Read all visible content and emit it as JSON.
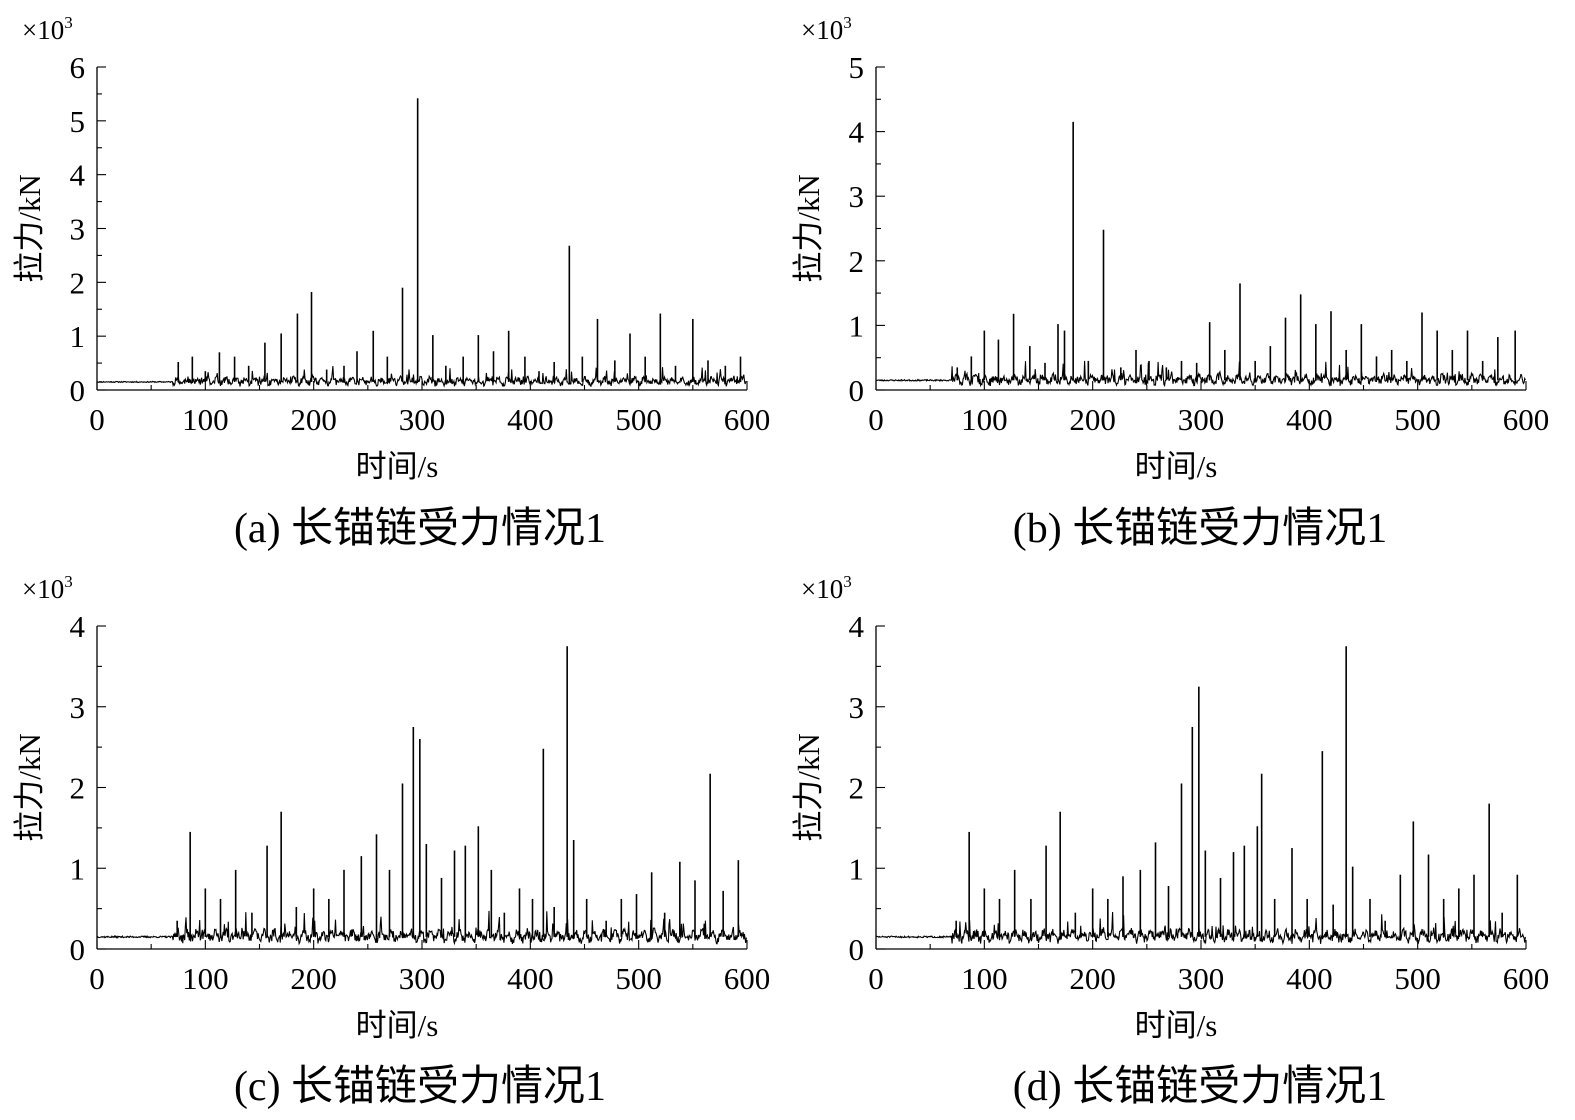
{
  "chart_data": [
    {
      "type": "line",
      "caption": "(a) 长锚链受力情况1",
      "xlabel": "时间/s",
      "ylabel": "拉力/kN",
      "multiplier_base": "×10",
      "multiplier_exp": "3",
      "xlim": [
        0,
        600
      ],
      "ylim": [
        0,
        6
      ],
      "xticks": [
        0,
        100,
        200,
        300,
        400,
        500,
        600
      ],
      "yticks": [
        0,
        1,
        2,
        3,
        4,
        5,
        6
      ],
      "baseline": 0.15,
      "quiet_until": 70,
      "seed": 11,
      "spikes": [
        [
          75,
          0.52
        ],
        [
          88,
          0.62
        ],
        [
          100,
          0.35
        ],
        [
          113,
          0.7
        ],
        [
          127,
          0.62
        ],
        [
          140,
          0.45
        ],
        [
          155,
          0.88
        ],
        [
          170,
          1.05
        ],
        [
          185,
          1.42
        ],
        [
          198,
          1.82
        ],
        [
          212,
          0.38
        ],
        [
          228,
          0.45
        ],
        [
          240,
          0.72
        ],
        [
          255,
          1.1
        ],
        [
          268,
          0.62
        ],
        [
          282,
          1.9
        ],
        [
          296,
          5.42
        ],
        [
          310,
          1.02
        ],
        [
          322,
          0.45
        ],
        [
          338,
          0.62
        ],
        [
          352,
          1.02
        ],
        [
          366,
          0.72
        ],
        [
          380,
          1.1
        ],
        [
          395,
          0.62
        ],
        [
          408,
          0.35
        ],
        [
          422,
          0.52
        ],
        [
          436,
          2.68
        ],
        [
          448,
          0.62
        ],
        [
          462,
          1.32
        ],
        [
          478,
          0.55
        ],
        [
          492,
          1.05
        ],
        [
          506,
          0.62
        ],
        [
          520,
          1.42
        ],
        [
          534,
          0.45
        ],
        [
          550,
          1.32
        ],
        [
          564,
          0.55
        ],
        [
          580,
          0.45
        ],
        [
          594,
          0.62
        ]
      ]
    },
    {
      "type": "line",
      "caption": "(b) 长锚链受力情况1",
      "xlabel": "时间/s",
      "ylabel": "拉力/kN",
      "multiplier_base": "×10",
      "multiplier_exp": "3",
      "xlim": [
        0,
        600
      ],
      "ylim": [
        0,
        5
      ],
      "xticks": [
        0,
        100,
        200,
        300,
        400,
        500,
        600
      ],
      "yticks": [
        0,
        1,
        2,
        3,
        4,
        5
      ],
      "baseline": 0.15,
      "quiet_until": 70,
      "seed": 23,
      "spikes": [
        [
          75,
          0.35
        ],
        [
          88,
          0.52
        ],
        [
          100,
          0.92
        ],
        [
          113,
          0.78
        ],
        [
          127,
          1.18
        ],
        [
          142,
          0.68
        ],
        [
          156,
          0.42
        ],
        [
          168,
          1.02
        ],
        [
          174,
          0.92
        ],
        [
          182,
          4.15
        ],
        [
          196,
          0.45
        ],
        [
          210,
          2.48
        ],
        [
          226,
          0.35
        ],
        [
          240,
          0.62
        ],
        [
          252,
          0.45
        ],
        [
          268,
          0.35
        ],
        [
          282,
          0.45
        ],
        [
          296,
          0.42
        ],
        [
          308,
          1.05
        ],
        [
          322,
          0.62
        ],
        [
          336,
          1.65
        ],
        [
          350,
          0.45
        ],
        [
          364,
          0.68
        ],
        [
          378,
          1.12
        ],
        [
          392,
          1.48
        ],
        [
          406,
          1.02
        ],
        [
          420,
          1.22
        ],
        [
          434,
          0.62
        ],
        [
          448,
          1.02
        ],
        [
          462,
          0.52
        ],
        [
          476,
          0.62
        ],
        [
          490,
          0.45
        ],
        [
          504,
          1.2
        ],
        [
          518,
          0.92
        ],
        [
          532,
          0.62
        ],
        [
          546,
          0.92
        ],
        [
          560,
          0.45
        ],
        [
          574,
          0.82
        ],
        [
          590,
          0.92
        ]
      ]
    },
    {
      "type": "line",
      "caption": "(c) 长锚链受力情况1",
      "xlabel": "时间/s",
      "ylabel": "拉力/kN",
      "multiplier_base": "×10",
      "multiplier_exp": "3",
      "xlim": [
        0,
        600
      ],
      "ylim": [
        0,
        4
      ],
      "xticks": [
        0,
        100,
        200,
        300,
        400,
        500,
        600
      ],
      "yticks": [
        0,
        1,
        2,
        3,
        4
      ],
      "baseline": 0.15,
      "quiet_until": 70,
      "seed": 37,
      "spikes": [
        [
          74,
          0.35
        ],
        [
          86,
          1.45
        ],
        [
          100,
          0.75
        ],
        [
          114,
          0.62
        ],
        [
          128,
          0.98
        ],
        [
          143,
          0.45
        ],
        [
          157,
          1.28
        ],
        [
          170,
          1.7
        ],
        [
          184,
          0.52
        ],
        [
          200,
          0.75
        ],
        [
          214,
          0.62
        ],
        [
          228,
          0.98
        ],
        [
          244,
          1.15
        ],
        [
          258,
          1.42
        ],
        [
          270,
          0.98
        ],
        [
          282,
          2.05
        ],
        [
          292,
          2.75
        ],
        [
          298,
          2.6
        ],
        [
          304,
          1.3
        ],
        [
          318,
          0.88
        ],
        [
          330,
          1.22
        ],
        [
          340,
          1.28
        ],
        [
          352,
          1.52
        ],
        [
          364,
          0.98
        ],
        [
          376,
          0.45
        ],
        [
          390,
          0.75
        ],
        [
          402,
          0.62
        ],
        [
          412,
          2.48
        ],
        [
          422,
          0.52
        ],
        [
          434,
          3.75
        ],
        [
          440,
          1.35
        ],
        [
          452,
          0.62
        ],
        [
          470,
          0.35
        ],
        [
          484,
          0.62
        ],
        [
          498,
          0.68
        ],
        [
          512,
          0.95
        ],
        [
          524,
          0.45
        ],
        [
          538,
          1.08
        ],
        [
          552,
          0.85
        ],
        [
          566,
          2.17
        ],
        [
          578,
          0.72
        ],
        [
          592,
          1.1
        ]
      ]
    },
    {
      "type": "line",
      "caption": "(d) 长锚链受力情况1",
      "xlabel": "时间/s",
      "ylabel": "拉力/kN",
      "multiplier_base": "×10",
      "multiplier_exp": "3",
      "xlim": [
        0,
        600
      ],
      "ylim": [
        0,
        4
      ],
      "xticks": [
        0,
        100,
        200,
        300,
        400,
        500,
        600
      ],
      "yticks": [
        0,
        1,
        2,
        3,
        4
      ],
      "baseline": 0.15,
      "quiet_until": 70,
      "seed": 51,
      "spikes": [
        [
          74,
          0.35
        ],
        [
          86,
          1.45
        ],
        [
          100,
          0.75
        ],
        [
          114,
          0.62
        ],
        [
          128,
          0.98
        ],
        [
          143,
          0.62
        ],
        [
          157,
          1.28
        ],
        [
          170,
          1.7
        ],
        [
          184,
          0.45
        ],
        [
          200,
          0.75
        ],
        [
          214,
          0.62
        ],
        [
          228,
          0.9
        ],
        [
          244,
          0.98
        ],
        [
          258,
          1.32
        ],
        [
          270,
          0.78
        ],
        [
          282,
          2.05
        ],
        [
          292,
          2.75
        ],
        [
          298,
          3.25
        ],
        [
          304,
          1.22
        ],
        [
          318,
          0.88
        ],
        [
          330,
          1.2
        ],
        [
          340,
          1.28
        ],
        [
          352,
          1.52
        ],
        [
          356,
          2.17
        ],
        [
          368,
          0.62
        ],
        [
          384,
          1.25
        ],
        [
          398,
          0.62
        ],
        [
          412,
          2.45
        ],
        [
          422,
          0.55
        ],
        [
          434,
          3.75
        ],
        [
          440,
          1.02
        ],
        [
          456,
          0.62
        ],
        [
          470,
          0.35
        ],
        [
          484,
          0.92
        ],
        [
          496,
          1.58
        ],
        [
          510,
          1.17
        ],
        [
          524,
          0.62
        ],
        [
          538,
          0.75
        ],
        [
          552,
          0.92
        ],
        [
          566,
          1.8
        ],
        [
          578,
          0.45
        ],
        [
          592,
          0.92
        ]
      ]
    }
  ]
}
